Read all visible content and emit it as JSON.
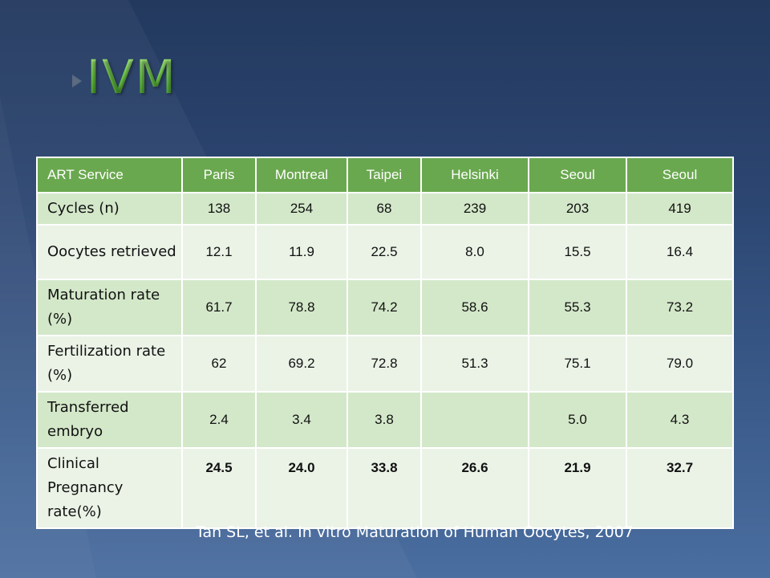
{
  "slide": {
    "title": "IVM"
  },
  "table": {
    "columns": [
      "ART Service",
      "Paris",
      "Montreal",
      "Taipei",
      "Helsinki",
      "Seoul",
      "Seoul"
    ],
    "rows": [
      {
        "label": "Cycles (n)",
        "values": [
          "138",
          "254",
          "68",
          "239",
          "203",
          "419"
        ]
      },
      {
        "label": "Oocytes retrieved",
        "values": [
          "12.1",
          "11.9",
          "22.5",
          "8.0",
          "15.5",
          "16.4"
        ]
      },
      {
        "label": "Maturation rate (%)",
        "values": [
          "61.7",
          "78.8",
          "74.2",
          "58.6",
          "55.3",
          "73.2"
        ]
      },
      {
        "label": "Fertilization rate (%)",
        "values": [
          "62",
          "69.2",
          "72.8",
          "51.3",
          "75.1",
          "79.0"
        ]
      },
      {
        "label": "Transferred embryo",
        "values": [
          "2.4",
          "3.4",
          "3.8",
          "",
          "5.0",
          "4.3"
        ]
      },
      {
        "label": "Clinical Pregnancy rate(%)",
        "values": [
          "24.5",
          "24.0",
          "33.8",
          "26.6",
          "21.9",
          "32.7"
        ]
      }
    ]
  },
  "citation": "Tan SL, et al. In vitro Maturation of Human Oocytes, 2007",
  "colors": {
    "header_green": "#6aa84f",
    "row_dark": "#d3e8c9",
    "row_light": "#eaf3e6",
    "title_green": "#7fd85a",
    "background_navy": "#2c4672"
  },
  "icons": [
    "slide-arrow-icon"
  ]
}
